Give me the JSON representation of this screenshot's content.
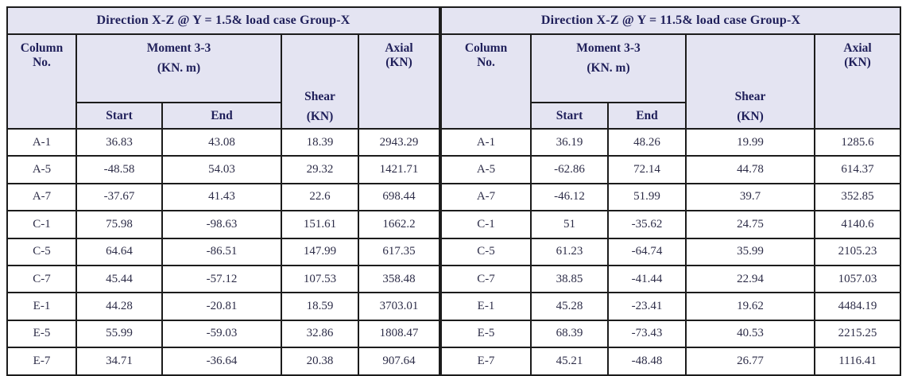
{
  "styles": {
    "header_bg": "#e4e4f2",
    "header_text": "#1f1f5a",
    "cell_text": "#2d2d48",
    "border": "#1c1c1c"
  },
  "column_headers": {
    "column_no": [
      "Column",
      "No."
    ],
    "moment": [
      "Moment 3-3",
      "(KN. m)"
    ],
    "start": "Start",
    "end": "End",
    "shear": [
      "Shear",
      "(KN)"
    ],
    "axial": [
      "Axial",
      "(KN)"
    ]
  },
  "tables": [
    {
      "title": "Direction X-Z @ Y = 1.5& load case Group-X",
      "rows": [
        {
          "col": "A-1",
          "start": "36.83",
          "end": "43.08",
          "shear": "18.39",
          "axial": "2943.29"
        },
        {
          "col": "A-5",
          "start": "-48.58",
          "end": "54.03",
          "shear": "29.32",
          "axial": "1421.71"
        },
        {
          "col": "A-7",
          "start": "-37.67",
          "end": "41.43",
          "shear": "22.6",
          "axial": "698.44"
        },
        {
          "col": "C-1",
          "start": "75.98",
          "end": "-98.63",
          "shear": "151.61",
          "axial": "1662.2"
        },
        {
          "col": "C-5",
          "start": "64.64",
          "end": "-86.51",
          "shear": "147.99",
          "axial": "617.35"
        },
        {
          "col": "C-7",
          "start": "45.44",
          "end": "-57.12",
          "shear": "107.53",
          "axial": "358.48"
        },
        {
          "col": "E-1",
          "start": "44.28",
          "end": "-20.81",
          "shear": "18.59",
          "axial": "3703.01"
        },
        {
          "col": "E-5",
          "start": "55.99",
          "end": "-59.03",
          "shear": "32.86",
          "axial": "1808.47"
        },
        {
          "col": "E-7",
          "start": "34.71",
          "end": "-36.64",
          "shear": "20.38",
          "axial": "907.64"
        }
      ]
    },
    {
      "title": "Direction X-Z @ Y = 11.5& load case Group-X",
      "rows": [
        {
          "col": "A-1",
          "start": "36.19",
          "end": "48.26",
          "shear": "19.99",
          "axial": "1285.6"
        },
        {
          "col": "A-5",
          "start": "-62.86",
          "end": "72.14",
          "shear": "44.78",
          "axial": "614.37"
        },
        {
          "col": "A-7",
          "start": "-46.12",
          "end": "51.99",
          "shear": "39.7",
          "axial": "352.85"
        },
        {
          "col": "C-1",
          "start": "51",
          "end": "-35.62",
          "shear": "24.75",
          "axial": "4140.6"
        },
        {
          "col": "C-5",
          "start": "61.23",
          "end": "-64.74",
          "shear": "35.99",
          "axial": "2105.23"
        },
        {
          "col": "C-7",
          "start": "38.85",
          "end": "-41.44",
          "shear": "22.94",
          "axial": "1057.03"
        },
        {
          "col": "E-1",
          "start": "45.28",
          "end": "-23.41",
          "shear": "19.62",
          "axial": "4484.19"
        },
        {
          "col": "E-5",
          "start": "68.39",
          "end": "-73.43",
          "shear": "40.53",
          "axial": "2215.25"
        },
        {
          "col": "E-7",
          "start": "45.21",
          "end": "-48.48",
          "shear": "26.77",
          "axial": "1116.41"
        }
      ]
    }
  ]
}
